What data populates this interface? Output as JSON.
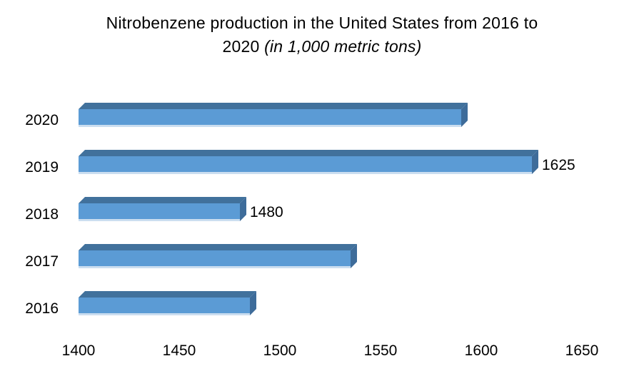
{
  "title": {
    "line1": "Nitrobenzene production in the United States from 2016 to",
    "line2_prefix": "2020 ",
    "line2_italic": "(in 1,000 metric tons)"
  },
  "chart_data": {
    "type": "bar",
    "orientation": "horizontal",
    "style": "3d",
    "title": "Nitrobenzene production in the United States from 2016 to 2020 (in 1,000 metric tons)",
    "categories": [
      "2020",
      "2019",
      "2018",
      "2017",
      "2016"
    ],
    "values": [
      1590,
      1625,
      1480,
      1535,
      1485
    ],
    "data_labels": [
      "",
      "1625",
      "1480",
      "",
      ""
    ],
    "xlabel": "",
    "ylabel": "",
    "xlim": [
      1400,
      1650
    ],
    "xticks": [
      "1400",
      "1450",
      "1500",
      "1550",
      "1600",
      "1650"
    ],
    "grid": false,
    "legend": false,
    "colors": {
      "bar_front": "#5B9BD5",
      "bar_top": "#41719C",
      "bar_top_dot": "#335F8C",
      "bar_side": "#3E6C9A",
      "bar_bottom_highlight": "#CBDEF0",
      "text": "#000000",
      "background": "#FFFFFF"
    }
  }
}
